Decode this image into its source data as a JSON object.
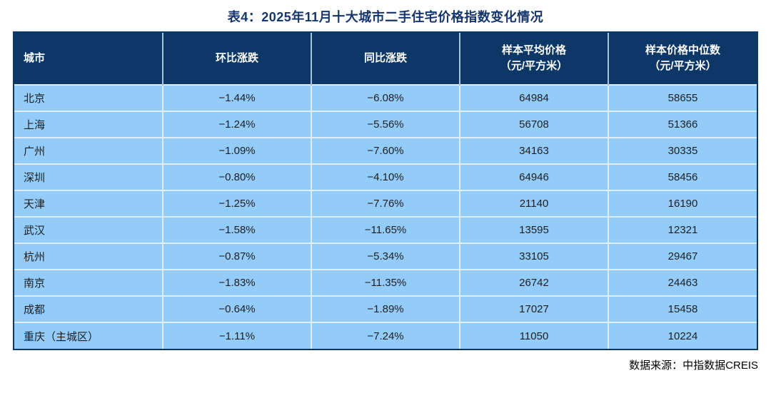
{
  "title": "表4：2025年11月十大城市二手住宅价格指数变化情况",
  "source_note": "数据来源：中指数据CREIS",
  "colors": {
    "header_bg": "#0D3766",
    "row_bg": "#93CBF9",
    "grid_line": "#DCEEFC",
    "header_grid_line": "#A9C0D8",
    "title_color": "#14366B",
    "body_text": "#1F1F1F",
    "header_text": "#FFFFFF",
    "border_color": "#0D3766"
  },
  "table": {
    "columns": [
      {
        "id": "city",
        "label_lines": [
          "城市"
        ],
        "align": "left"
      },
      {
        "id": "mom-change",
        "label_lines": [
          "环比涨跌"
        ],
        "align": "center"
      },
      {
        "id": "yoy-change",
        "label_lines": [
          "同比涨跌"
        ],
        "align": "center"
      },
      {
        "id": "avg-price",
        "label_lines": [
          "样本平均价格",
          "（元/平方米）"
        ],
        "align": "center"
      },
      {
        "id": "median-price",
        "label_lines": [
          "样本价格中位数",
          "（元/平方米）"
        ],
        "align": "center"
      }
    ],
    "rows": [
      [
        "北京",
        "−1.44%",
        "−6.08%",
        "64984",
        "58655"
      ],
      [
        "上海",
        "−1.24%",
        "−5.56%",
        "56708",
        "51366"
      ],
      [
        "广州",
        "−1.09%",
        "−7.60%",
        "34163",
        "30335"
      ],
      [
        "深圳",
        "−0.80%",
        "−4.10%",
        "64946",
        "58456"
      ],
      [
        "天津",
        "−1.25%",
        "−7.76%",
        "21140",
        "16190"
      ],
      [
        "武汉",
        "−1.58%",
        "−11.65%",
        "13595",
        "12321"
      ],
      [
        "杭州",
        "−0.87%",
        "−5.34%",
        "33105",
        "29467"
      ],
      [
        "南京",
        "−1.83%",
        "−11.35%",
        "26742",
        "24463"
      ],
      [
        "成都",
        "−0.64%",
        "−1.89%",
        "17027",
        "15458"
      ],
      [
        "重庆（主城区）",
        "−1.11%",
        "−7.24%",
        "11050",
        "10224"
      ]
    ]
  },
  "chart_data": {
    "type": "table",
    "title": "表4：2025年11月十大城市二手住宅价格指数变化情况",
    "columns": [
      "城市",
      "环比涨跌",
      "同比涨跌",
      "样本平均价格（元/平方米）",
      "样本价格中位数（元/平方米）"
    ],
    "rows": [
      {
        "city": "北京",
        "mom_change_pct": -1.44,
        "yoy_change_pct": -6.08,
        "avg_price": 64984,
        "median_price": 58655
      },
      {
        "city": "上海",
        "mom_change_pct": -1.24,
        "yoy_change_pct": -5.56,
        "avg_price": 56708,
        "median_price": 51366
      },
      {
        "city": "广州",
        "mom_change_pct": -1.09,
        "yoy_change_pct": -7.6,
        "avg_price": 34163,
        "median_price": 30335
      },
      {
        "city": "深圳",
        "mom_change_pct": -0.8,
        "yoy_change_pct": -4.1,
        "avg_price": 64946,
        "median_price": 58456
      },
      {
        "city": "天津",
        "mom_change_pct": -1.25,
        "yoy_change_pct": -7.76,
        "avg_price": 21140,
        "median_price": 16190
      },
      {
        "city": "武汉",
        "mom_change_pct": -1.58,
        "yoy_change_pct": -11.65,
        "avg_price": 13595,
        "median_price": 12321
      },
      {
        "city": "杭州",
        "mom_change_pct": -0.87,
        "yoy_change_pct": -5.34,
        "avg_price": 33105,
        "median_price": 29467
      },
      {
        "city": "南京",
        "mom_change_pct": -1.83,
        "yoy_change_pct": -11.35,
        "avg_price": 26742,
        "median_price": 24463
      },
      {
        "city": "成都",
        "mom_change_pct": -0.64,
        "yoy_change_pct": -1.89,
        "avg_price": 17027,
        "median_price": 15458
      },
      {
        "city": "重庆（主城区）",
        "mom_change_pct": -1.11,
        "yoy_change_pct": -7.24,
        "avg_price": 11050,
        "median_price": 10224
      }
    ],
    "source": "数据来源：中指数据CREIS"
  }
}
